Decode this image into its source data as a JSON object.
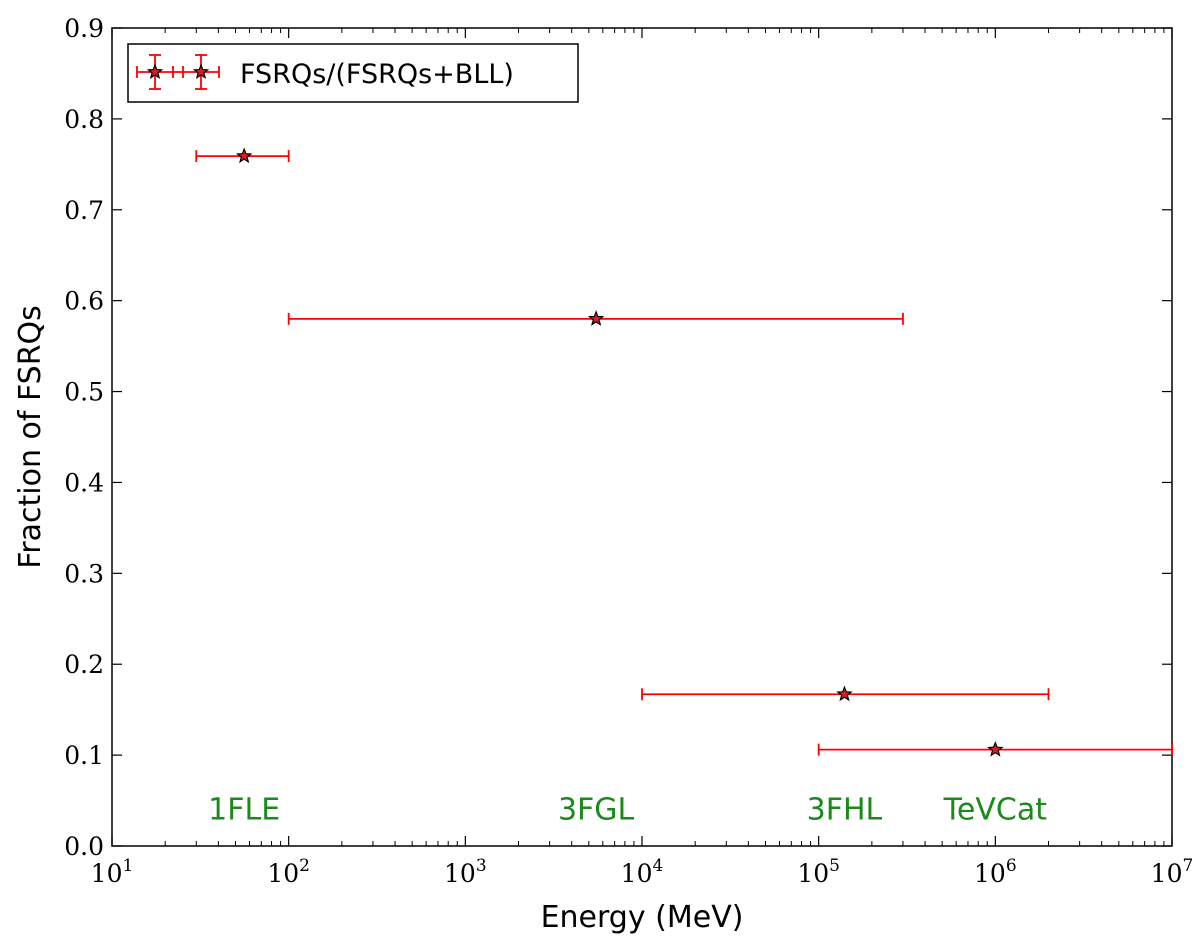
{
  "chart_data": {
    "type": "scatter",
    "xscale": "log",
    "xlim": [
      10,
      10000000
    ],
    "ylim": [
      0.0,
      0.9
    ],
    "xlabel": "Energy (MeV)",
    "ylabel": "Fraction of FSRQs",
    "yticks": [
      "0.0",
      "0.1",
      "0.2",
      "0.3",
      "0.4",
      "0.5",
      "0.6",
      "0.7",
      "0.8",
      "0.9"
    ],
    "xticks": [
      {
        "base": "10",
        "exp": "1"
      },
      {
        "base": "10",
        "exp": "2"
      },
      {
        "base": "10",
        "exp": "3"
      },
      {
        "base": "10",
        "exp": "4"
      },
      {
        "base": "10",
        "exp": "5"
      },
      {
        "base": "10",
        "exp": "6"
      },
      {
        "base": "10",
        "exp": "7"
      }
    ],
    "grid": false,
    "legend": {
      "placement": "top-left",
      "entries": [
        "FSRQs/(FSRQs+BLL)"
      ]
    },
    "series": [
      {
        "name": "FSRQs/(FSRQs+BLL)",
        "points": [
          {
            "x": 56,
            "x_low": 30,
            "x_high": 100,
            "y": 0.759
          },
          {
            "x": 5500,
            "x_low": 100,
            "x_high": 300000,
            "y": 0.58
          },
          {
            "x": 140000,
            "x_low": 10000,
            "x_high": 2000000,
            "y": 0.167
          },
          {
            "x": 1000000,
            "x_low": 100000,
            "x_high": 10000000,
            "y": 0.106
          }
        ]
      }
    ],
    "annotations": [
      {
        "text": "1FLE",
        "x": 56,
        "y": 0.04
      },
      {
        "text": "3FGL",
        "x": 5500,
        "y": 0.04
      },
      {
        "text": "3FHL",
        "x": 140000,
        "y": 0.04
      },
      {
        "text": "TeVCat",
        "x": 1000000,
        "y": 0.04
      }
    ],
    "colors": {
      "errorbar": "#ff0000",
      "marker_fill": "#d42020",
      "marker_edge": "#000000",
      "annotation": "#1a8a1a",
      "axis": "#000000"
    }
  }
}
